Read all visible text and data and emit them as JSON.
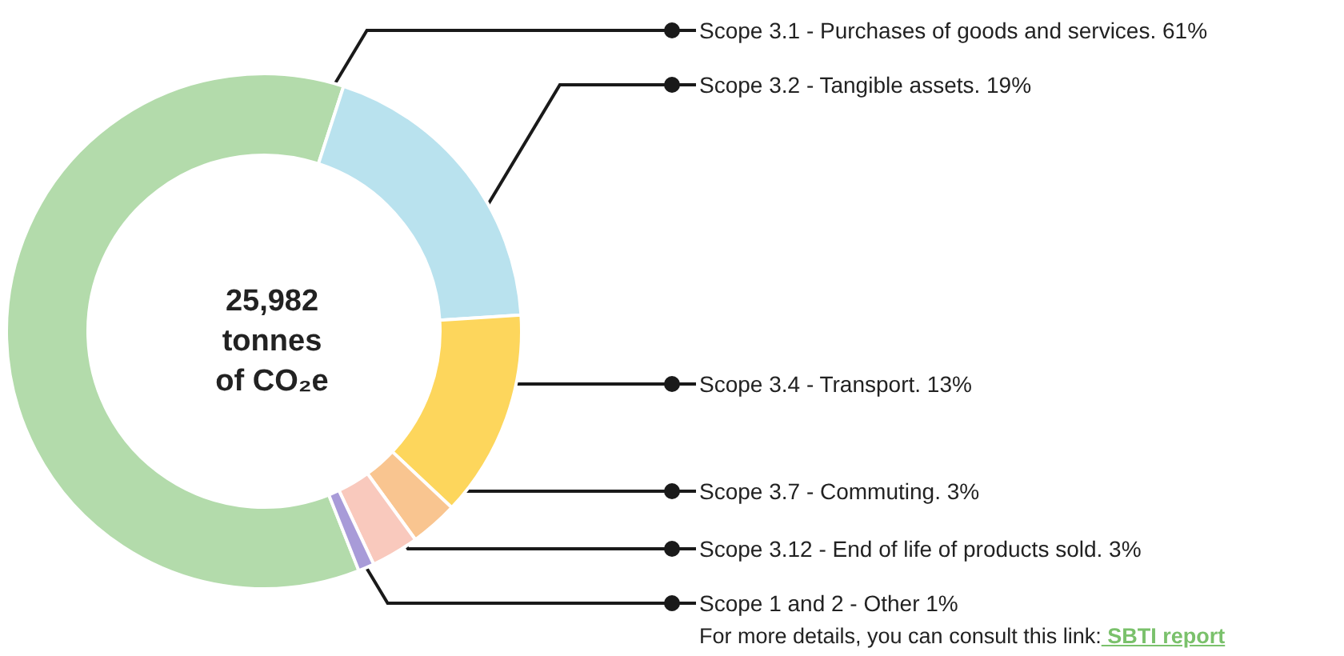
{
  "chart_data": {
    "type": "donut",
    "title": "25,982\ntonnes\nof CO₂e",
    "categories": [
      "Scope 3.1 - Purchases of goods and services.",
      "Scope 3.2 - Tangible assets.",
      "Scope 3.4 - Transport.",
      "Scope 3.7 - Commuting.",
      "Scope 3.12 - End of life of products sold.",
      "Scope 1 and 2 - Other"
    ],
    "values": [
      61,
      19,
      13,
      3,
      3,
      1
    ],
    "value_labels": [
      "61%",
      "19%",
      "13%",
      "3%",
      "3%",
      "1%"
    ],
    "colors": [
      "#b3dbab",
      "#b9e2ee",
      "#fdd65c",
      "#f9c590",
      "#f9c9bd",
      "#a89bd8"
    ],
    "annotations": [
      "For more details, you can consult this link:",
      "SBTI report"
    ]
  }
}
